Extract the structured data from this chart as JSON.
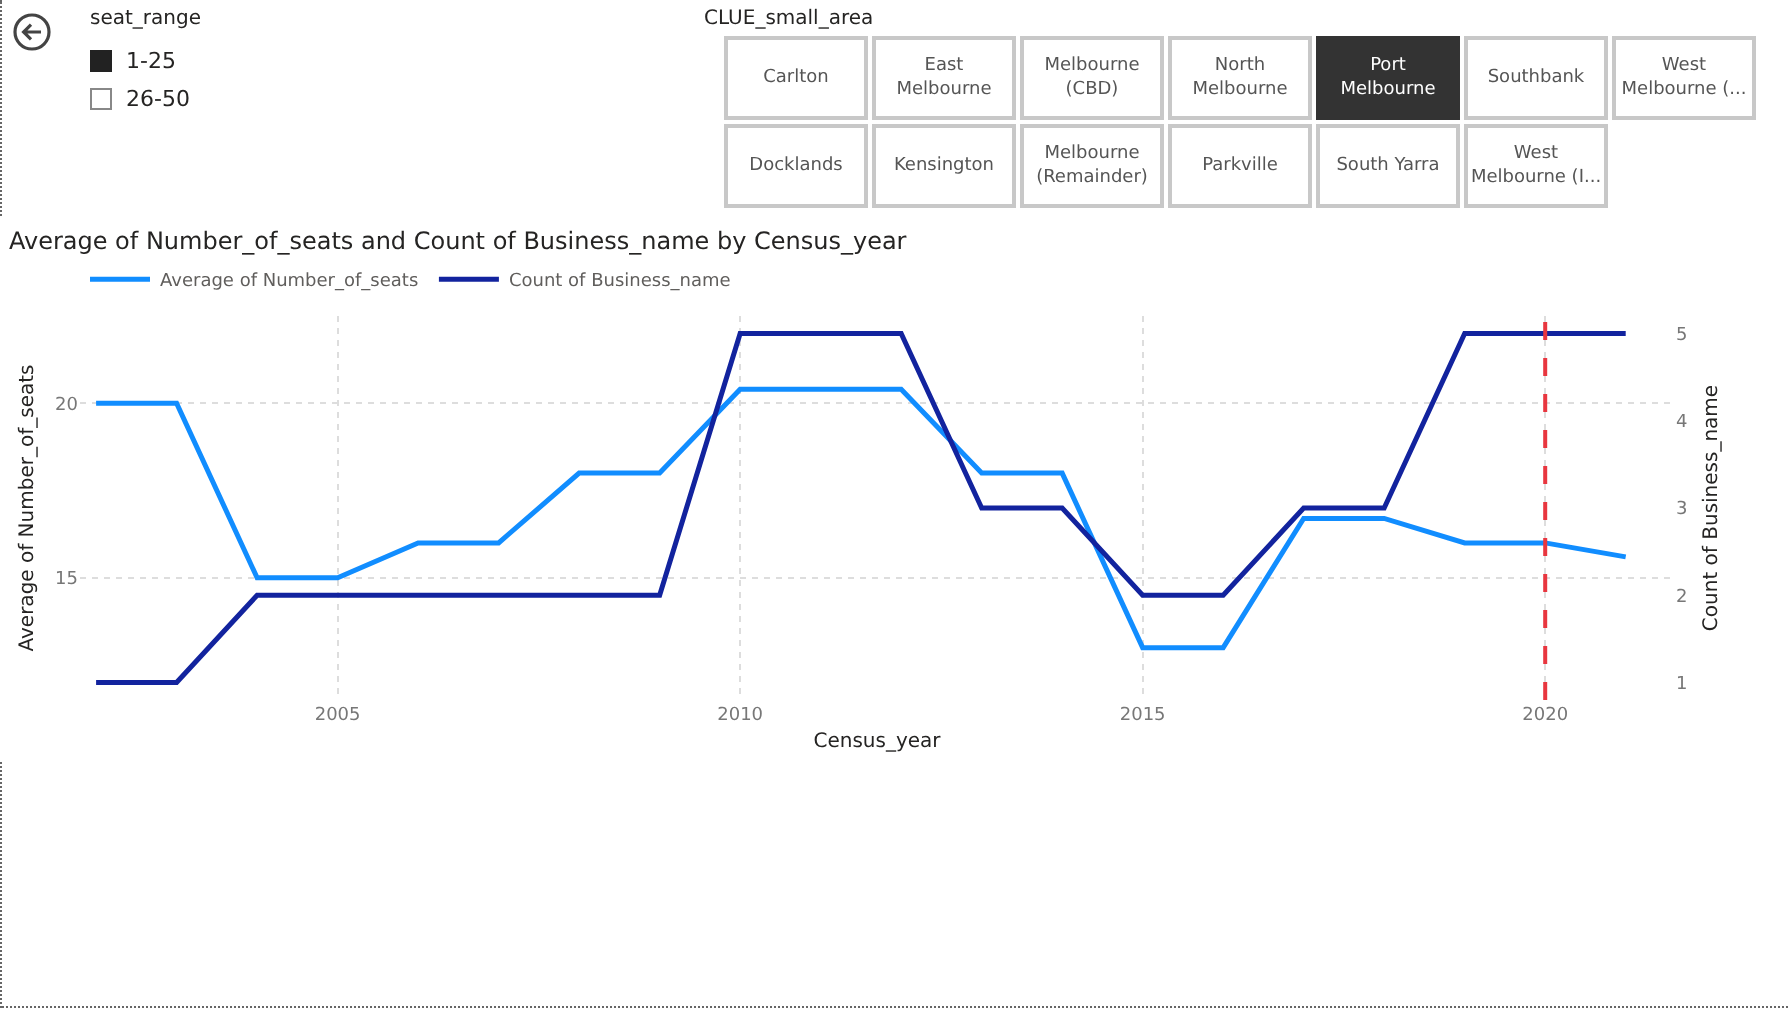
{
  "chart_data": [
    {
      "type": "other",
      "title": "seat_range",
      "annotations": [
        "1-25",
        "26-50"
      ]
    },
    {
      "type": "other",
      "title": "CLUE_small_area",
      "annotations": [
        "Carlton",
        "East Melbourne",
        "Melbourne (CBD)",
        "North Melbourne",
        "Port Melbourne",
        "Southbank",
        "West Melbourne (...",
        "Docklands",
        "Kensington",
        "Melbourne (Remainder)",
        "Parkville",
        "South Yarra",
        "West Melbourne (I..."
      ]
    },
    {
      "type": "line",
      "title": "Average of Number_of_seats and Count of Business_name by Census_year",
      "xlabel": "Census_year",
      "ylabel": "Average of Number_of_seats",
      "y2label": "Count of Business_name",
      "x": [
        2002,
        2003,
        2004,
        2005,
        2006,
        2007,
        2008,
        2009,
        2010,
        2011,
        2012,
        2013,
        2014,
        2015,
        2016,
        2017,
        2018,
        2019,
        2020,
        2021
      ],
      "series": [
        {
          "name": "Average of Number_of_seats",
          "color": "#118dff",
          "values": [
            20,
            20,
            15,
            15,
            16,
            16,
            18,
            18,
            20.4,
            20.4,
            20.4,
            18,
            18,
            13,
            13,
            16.7,
            16.7,
            16,
            16,
            15.6
          ]
        },
        {
          "name": "Count of Business_name",
          "color": "#12239e",
          "axis": "y2",
          "values": [
            1,
            1,
            2,
            2,
            2,
            2,
            2,
            2,
            5,
            5,
            5,
            3,
            3,
            2,
            2,
            3,
            3,
            5,
            5,
            5
          ]
        }
      ],
      "xlim": [
        2001.8,
        2021.6
      ],
      "xticks": [
        2005,
        2010,
        2015,
        2020
      ],
      "ylim": [
        11.5,
        22.5
      ],
      "yticks": [
        15,
        20
      ],
      "y2lim": [
        0.8,
        5.2
      ],
      "y2ticks": [
        1,
        2,
        3,
        4,
        5
      ],
      "ref_lines": [
        {
          "axis": "x",
          "value": 2020,
          "color": "#e8363f",
          "line_style": "dashed"
        }
      ],
      "grid": true,
      "legend": "top left",
      "marker": "none",
      "line_style": "solid"
    }
  ]
}
